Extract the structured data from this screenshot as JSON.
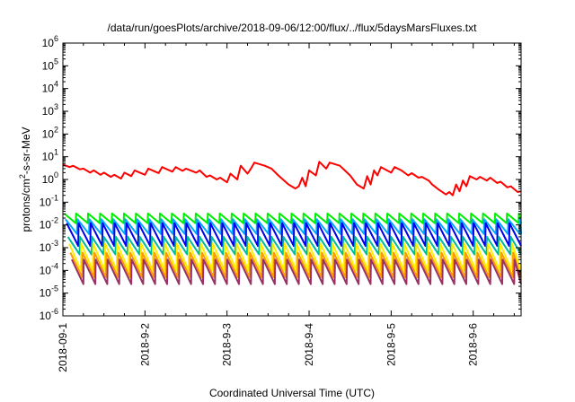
{
  "chart_data": {
    "type": "line",
    "title": "/data/run/goesPlots/archive/2018-09-06/12:00/flux/../flux/5daysMarsFluxes.txt",
    "xlabel": "Coordinated Universal Time (UTC)",
    "ylabel_parts": {
      "base": "protons/cm",
      "sup": "2",
      "rest": "-s-sr-MeV"
    },
    "yscale": "log",
    "ylim": [
      1e-06,
      1000000.0
    ],
    "xlim": [
      "2018-09-01T00:00",
      "2018-09-06T14:00"
    ],
    "x_ticks": [
      "2018-09-1",
      "2018-9-2",
      "2018-9-3",
      "2018-9-4",
      "2018-9-5",
      "2018-9-6"
    ],
    "y_ticks": [
      {
        "base": "10",
        "exp": "-6"
      },
      {
        "base": "10",
        "exp": "-5"
      },
      {
        "base": "10",
        "exp": "-4"
      },
      {
        "base": "10",
        "exp": "-3"
      },
      {
        "base": "10",
        "exp": "-2"
      },
      {
        "base": "10",
        "exp": "-1"
      },
      {
        "base": "10",
        "exp": "0"
      },
      {
        "base": "10",
        "exp": "1"
      },
      {
        "base": "10",
        "exp": "2"
      },
      {
        "base": "10",
        "exp": "3"
      },
      {
        "base": "10",
        "exp": "4"
      },
      {
        "base": "10",
        "exp": "5"
      },
      {
        "base": "10",
        "exp": "6"
      }
    ],
    "grid": false,
    "legend": "none",
    "series": [
      {
        "color": "#ff0000",
        "points": [
          [
            "2018-09-01T00:00",
            4.5
          ],
          [
            "2018-09-01T02:00",
            3.5
          ],
          [
            "2018-09-01T03:00",
            4.0
          ],
          [
            "2018-09-01T05:00",
            2.8
          ],
          [
            "2018-09-01T06:00",
            3.0
          ],
          [
            "2018-09-01T08:00",
            2.0
          ],
          [
            "2018-09-01T09:00",
            2.5
          ],
          [
            "2018-09-01T11:00",
            1.6
          ],
          [
            "2018-09-01T12:00",
            2.0
          ],
          [
            "2018-09-01T14:00",
            1.3
          ],
          [
            "2018-09-01T15:00",
            1.6
          ],
          [
            "2018-09-01T17:00",
            1.1
          ],
          [
            "2018-09-01T18:00",
            2.0
          ],
          [
            "2018-09-01T20:00",
            1.4
          ],
          [
            "2018-09-01T21:00",
            2.5
          ],
          [
            "2018-09-02T00:00",
            1.6
          ],
          [
            "2018-09-02T01:00",
            3.0
          ],
          [
            "2018-09-02T04:00",
            1.9
          ],
          [
            "2018-09-02T05:00",
            3.5
          ],
          [
            "2018-09-02T08:00",
            2.2
          ],
          [
            "2018-09-02T09:00",
            3.5
          ],
          [
            "2018-09-02T11:00",
            2.4
          ],
          [
            "2018-09-02T12:00",
            3.0
          ],
          [
            "2018-09-02T15:00",
            2.0
          ],
          [
            "2018-09-02T16:00",
            2.5
          ],
          [
            "2018-09-02T18:00",
            1.3
          ],
          [
            "2018-09-02T19:00",
            1.5
          ],
          [
            "2018-09-02T21:00",
            1.0
          ],
          [
            "2018-09-02T22:00",
            1.2
          ],
          [
            "2018-09-03T00:00",
            0.75
          ],
          [
            "2018-09-03T01:00",
            1.8
          ],
          [
            "2018-09-03T03:00",
            1.0
          ],
          [
            "2018-09-03T04:00",
            4.0
          ],
          [
            "2018-09-03T06:00",
            1.8
          ],
          [
            "2018-09-03T07:00",
            3.0
          ],
          [
            "2018-09-03T08:00",
            5.5
          ],
          [
            "2018-09-03T11:00",
            4.0
          ],
          [
            "2018-09-03T13:00",
            3.0
          ],
          [
            "2018-09-03T15:00",
            1.5
          ],
          [
            "2018-09-03T18:00",
            0.6
          ],
          [
            "2018-09-03T20:00",
            0.4
          ],
          [
            "2018-09-03T21:00",
            0.5
          ],
          [
            "2018-09-03T22:00",
            1.2
          ],
          [
            "2018-09-03T23:00",
            0.5
          ],
          [
            "2018-09-04T00:00",
            2.5
          ],
          [
            "2018-09-04T02:00",
            1.5
          ],
          [
            "2018-09-04T03:00",
            6.0
          ],
          [
            "2018-09-04T05:00",
            3.0
          ],
          [
            "2018-09-04T06:00",
            5.5
          ],
          [
            "2018-09-04T09:00",
            4.0
          ],
          [
            "2018-09-04T12:00",
            1.5
          ],
          [
            "2018-09-04T14:00",
            0.6
          ],
          [
            "2018-09-04T16:00",
            0.4
          ],
          [
            "2018-09-04T17:00",
            1.4
          ],
          [
            "2018-09-04T18:00",
            0.6
          ],
          [
            "2018-09-04T19:00",
            2.5
          ],
          [
            "2018-09-04T20:00",
            1.5
          ],
          [
            "2018-09-04T21:00",
            3.5
          ],
          [
            "2018-09-05T00:00",
            2.0
          ],
          [
            "2018-09-05T01:00",
            3.5
          ],
          [
            "2018-09-05T03:00",
            2.5
          ],
          [
            "2018-09-05T05:00",
            1.5
          ],
          [
            "2018-09-05T06:00",
            1.9
          ],
          [
            "2018-09-05T08:00",
            1.2
          ],
          [
            "2018-09-05T09:00",
            1.3
          ],
          [
            "2018-09-05T11:00",
            0.9
          ],
          [
            "2018-09-05T12:00",
            0.6
          ],
          [
            "2018-09-05T14:00",
            0.35
          ],
          [
            "2018-09-05T16:00",
            0.22
          ],
          [
            "2018-09-05T17:00",
            0.28
          ],
          [
            "2018-09-05T18:00",
            0.2
          ],
          [
            "2018-09-05T19:00",
            0.6
          ],
          [
            "2018-09-05T20:00",
            0.3
          ],
          [
            "2018-09-05T21:00",
            0.9
          ],
          [
            "2018-09-05T22:00",
            0.5
          ],
          [
            "2018-09-05T23:00",
            1.4
          ],
          [
            "2018-09-06T01:00",
            1.0
          ],
          [
            "2018-09-06T02:00",
            1.3
          ],
          [
            "2018-09-06T04:00",
            0.9
          ],
          [
            "2018-09-06T05:00",
            1.2
          ],
          [
            "2018-09-06T07:00",
            0.7
          ],
          [
            "2018-09-06T08:00",
            0.8
          ],
          [
            "2018-09-06T10:00",
            0.45
          ],
          [
            "2018-09-06T11:00",
            0.5
          ],
          [
            "2018-09-06T13:00",
            0.28
          ],
          [
            "2018-09-06T14:00",
            0.3
          ]
        ]
      },
      {
        "color": "#00ee00",
        "pattern": "sawtooth",
        "peak": 0.032,
        "trough": 0.012,
        "period_hours": 3.5
      },
      {
        "color": "#00aaff",
        "pattern": "sawtooth",
        "peak": 0.018,
        "trough": 0.004,
        "period_hours": 3.5
      },
      {
        "color": "#0000ee",
        "pattern": "sawtooth",
        "peak": 0.012,
        "trough": 0.0012,
        "period_hours": 3.5
      },
      {
        "color": "#00bb99",
        "pattern": "sawtooth",
        "peak": 0.003,
        "trough": 0.0005,
        "period_hours": 3.5
      },
      {
        "color": "#ffee00",
        "pattern": "sawtooth",
        "peak": 0.0015,
        "trough": 0.0001,
        "period_hours": 3.5
      },
      {
        "color": "#ff9900",
        "pattern": "sawtooth",
        "peak": 0.0006,
        "trough": 5e-05,
        "period_hours": 3.5
      },
      {
        "color": "#993366",
        "pattern": "sawtooth",
        "peak": 0.0003,
        "trough": 2.5e-05,
        "period_hours": 3.5
      }
    ]
  }
}
